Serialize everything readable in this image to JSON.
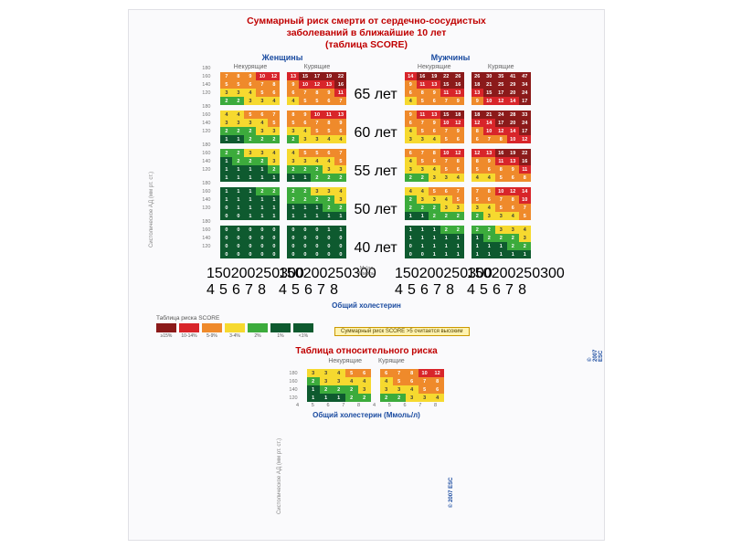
{
  "title": {
    "line1": "Суммарный риск смерти от сердечно-сосудистых",
    "line2": "заболеваний в ближайшие 10 лет",
    "line3": "(таблица SCORE)"
  },
  "headers": {
    "women": "Женщины",
    "men": "Мужчины",
    "nonsmoking": "Некурящие",
    "smoking": "Курящие"
  },
  "axes": {
    "x_label": "Общий холестерин",
    "y_label": "Систолическое АД (мм рт. ст.)",
    "sbp": [
      180,
      160,
      140,
      120
    ],
    "chol_mgdl": [
      "150",
      "200",
      "250",
      "300"
    ],
    "chol_mmol": [
      "4",
      "5",
      "6",
      "7",
      "8"
    ]
  },
  "ages": [
    "65 лет",
    "60 лет",
    "55 лет",
    "50 лет",
    "40 лет"
  ],
  "colors": {
    "darkred": "#8b1a1a",
    "red": "#d8252a",
    "orange": "#ef8a2b",
    "yellow": "#f6d92f",
    "green": "#3cab3c",
    "darkgreen": "#0e5a2f",
    "text_light": "#ffffff",
    "text_dark": "#3a3a3a"
  },
  "legend": {
    "title": "Таблица риска SCORE",
    "items": [
      {
        "color": "#8b1a1a",
        "label": "≥15%"
      },
      {
        "color": "#d8252a",
        "label": "10-14%"
      },
      {
        "color": "#ef8a2b",
        "label": "5-9%"
      },
      {
        "color": "#f6d92f",
        "label": "3-4%"
      },
      {
        "color": "#3cab3c",
        "label": "2%"
      },
      {
        "color": "#0e5a2f",
        "label": "1%"
      },
      {
        "color": "#0e5a2f",
        "label": "<1%"
      }
    ],
    "note": "Суммарный риск SCORE >5 считается высоким"
  },
  "score": {
    "columns": [
      "women_nonsmoke",
      "women_smoke",
      "men_nonsmoke",
      "men_smoke"
    ],
    "blocks": {
      "women_nonsmoke": [
        [
          [
            7,
            8,
            9,
            10,
            12
          ],
          [
            5,
            5,
            6,
            7,
            8
          ],
          [
            3,
            3,
            4,
            5,
            6
          ],
          [
            2,
            2,
            3,
            3,
            4
          ]
        ],
        [
          [
            4,
            4,
            5,
            6,
            7
          ],
          [
            3,
            3,
            3,
            4,
            5
          ],
          [
            2,
            2,
            2,
            3,
            3
          ],
          [
            1,
            1,
            2,
            2,
            2
          ]
        ],
        [
          [
            2,
            2,
            3,
            3,
            4
          ],
          [
            1,
            2,
            2,
            2,
            3
          ],
          [
            1,
            1,
            1,
            1,
            2
          ],
          [
            1,
            1,
            1,
            1,
            1
          ]
        ],
        [
          [
            1,
            1,
            1,
            2,
            2
          ],
          [
            1,
            1,
            1,
            1,
            1
          ],
          [
            0,
            1,
            1,
            1,
            1
          ],
          [
            0,
            0,
            1,
            1,
            1
          ]
        ],
        [
          [
            0,
            0,
            0,
            0,
            0
          ],
          [
            0,
            0,
            0,
            0,
            0
          ],
          [
            0,
            0,
            0,
            0,
            0
          ],
          [
            0,
            0,
            0,
            0,
            0
          ]
        ]
      ],
      "women_smoke": [
        [
          [
            13,
            15,
            17,
            19,
            22
          ],
          [
            9,
            10,
            12,
            13,
            16
          ],
          [
            6,
            7,
            8,
            9,
            11
          ],
          [
            4,
            5,
            5,
            6,
            7
          ]
        ],
        [
          [
            8,
            9,
            10,
            11,
            13
          ],
          [
            5,
            6,
            7,
            8,
            9
          ],
          [
            3,
            4,
            5,
            5,
            6
          ],
          [
            2,
            3,
            3,
            4,
            4
          ]
        ],
        [
          [
            4,
            5,
            5,
            6,
            7
          ],
          [
            3,
            3,
            4,
            4,
            5
          ],
          [
            2,
            2,
            2,
            3,
            3
          ],
          [
            1,
            1,
            2,
            2,
            2
          ]
        ],
        [
          [
            2,
            2,
            3,
            3,
            4
          ],
          [
            2,
            2,
            2,
            2,
            3
          ],
          [
            1,
            1,
            1,
            2,
            2
          ],
          [
            1,
            1,
            1,
            1,
            1
          ]
        ],
        [
          [
            0,
            0,
            0,
            1,
            1
          ],
          [
            0,
            0,
            0,
            0,
            0
          ],
          [
            0,
            0,
            0,
            0,
            0
          ],
          [
            0,
            0,
            0,
            0,
            0
          ]
        ]
      ],
      "men_nonsmoke": [
        [
          [
            14,
            16,
            19,
            22,
            26
          ],
          [
            9,
            11,
            13,
            15,
            16
          ],
          [
            6,
            8,
            9,
            11,
            13
          ],
          [
            4,
            5,
            6,
            7,
            9
          ]
        ],
        [
          [
            9,
            11,
            13,
            15,
            18
          ],
          [
            6,
            7,
            9,
            10,
            12
          ],
          [
            4,
            5,
            6,
            7,
            9
          ],
          [
            3,
            3,
            4,
            5,
            6
          ]
        ],
        [
          [
            6,
            7,
            8,
            10,
            12
          ],
          [
            4,
            5,
            6,
            7,
            8
          ],
          [
            3,
            3,
            4,
            5,
            6
          ],
          [
            2,
            2,
            3,
            3,
            4
          ]
        ],
        [
          [
            4,
            4,
            5,
            6,
            7
          ],
          [
            2,
            3,
            3,
            4,
            5
          ],
          [
            2,
            2,
            2,
            3,
            3
          ],
          [
            1,
            1,
            2,
            2,
            2
          ]
        ],
        [
          [
            1,
            1,
            1,
            2,
            2
          ],
          [
            1,
            1,
            1,
            1,
            1
          ],
          [
            0,
            1,
            1,
            1,
            1
          ],
          [
            0,
            0,
            1,
            1,
            1
          ]
        ]
      ],
      "men_smoke": [
        [
          [
            26,
            30,
            35,
            41,
            47
          ],
          [
            18,
            21,
            25,
            29,
            34
          ],
          [
            13,
            15,
            17,
            20,
            24
          ],
          [
            9,
            10,
            12,
            14,
            17
          ]
        ],
        [
          [
            18,
            21,
            24,
            28,
            33
          ],
          [
            12,
            14,
            17,
            20,
            24
          ],
          [
            8,
            10,
            12,
            14,
            17
          ],
          [
            6,
            7,
            8,
            10,
            12
          ]
        ],
        [
          [
            12,
            13,
            16,
            19,
            22
          ],
          [
            8,
            9,
            11,
            13,
            16
          ],
          [
            5,
            6,
            8,
            9,
            11
          ],
          [
            4,
            4,
            5,
            6,
            8
          ]
        ],
        [
          [
            7,
            8,
            10,
            12,
            14
          ],
          [
            5,
            6,
            7,
            8,
            10
          ],
          [
            3,
            4,
            5,
            6,
            7
          ],
          [
            2,
            3,
            3,
            4,
            5
          ]
        ],
        [
          [
            2,
            2,
            3,
            3,
            4
          ],
          [
            1,
            2,
            2,
            2,
            3
          ],
          [
            1,
            1,
            1,
            2,
            2
          ],
          [
            1,
            1,
            1,
            1,
            1
          ]
        ]
      ]
    }
  },
  "relative": {
    "title": "Таблица относительного риска",
    "x_label": "Общий холестерин (Ммоль/л)",
    "y_label": "Систолическое\nАД (мм рт. ст.)",
    "sbp": [
      180,
      160,
      140,
      120
    ],
    "chol": [
      "4",
      "5",
      "6",
      "7",
      "8"
    ],
    "nonsmoke": [
      [
        3,
        3,
        4,
        5,
        6
      ],
      [
        2,
        3,
        3,
        4,
        4
      ],
      [
        1,
        2,
        2,
        2,
        3
      ],
      [
        1,
        1,
        1,
        2,
        2
      ]
    ],
    "smoke": [
      [
        6,
        7,
        8,
        10,
        12
      ],
      [
        4,
        5,
        6,
        7,
        8
      ],
      [
        3,
        3,
        4,
        5,
        6
      ],
      [
        2,
        2,
        3,
        3,
        4
      ]
    ]
  },
  "meta": {
    "copyright": "© 2007 ESC"
  }
}
